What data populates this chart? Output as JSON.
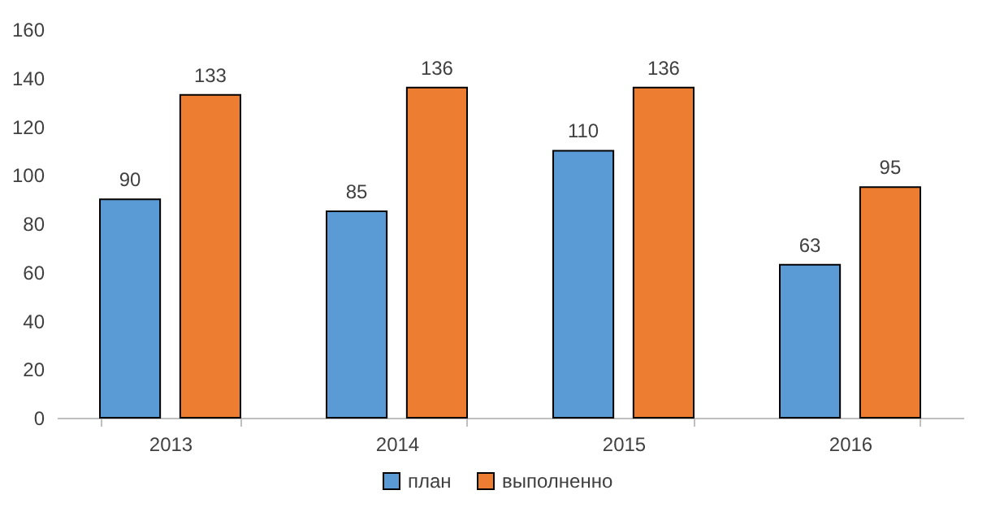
{
  "chart_data": {
    "type": "bar",
    "categories": [
      "2013",
      "2014",
      "2015",
      "2016"
    ],
    "series": [
      {
        "name": "план",
        "color": "#5b9bd5",
        "values": [
          90,
          85,
          110,
          63
        ]
      },
      {
        "name": "выполненно",
        "color": "#ed7d31",
        "values": [
          133,
          136,
          136,
          95
        ]
      }
    ],
    "ylim": [
      0,
      160
    ],
    "yticks": [
      0,
      20,
      40,
      60,
      80,
      100,
      120,
      140,
      160
    ],
    "grid": false,
    "legend": "bottom",
    "data_labels": true
  }
}
